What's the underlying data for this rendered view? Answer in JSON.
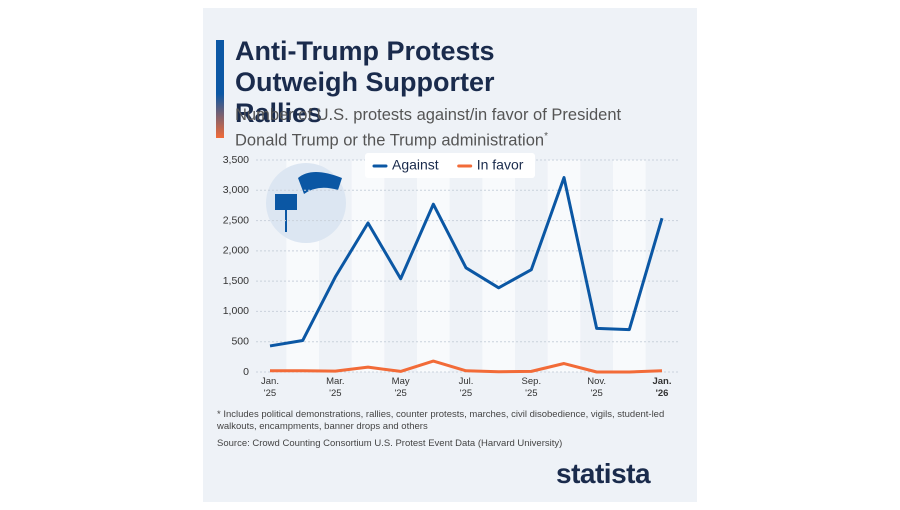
{
  "chart_data": {
    "type": "line",
    "title": "Anti-Trump Protests Outweigh Supporter Rallies",
    "subtitle": "Number of U.S. protests against/in favor of President Donald Trump or the Trump administration",
    "subtitle_mark": "*",
    "categories": [
      "Jan.\n'25",
      null,
      "Mar.\n'25",
      null,
      "May\n'25",
      null,
      "Jul.\n'25",
      null,
      "Sep.\n'25",
      null,
      "Nov.\n'25",
      null,
      "Jan.\n'26"
    ],
    "series": [
      {
        "name": "Against",
        "color": "#0b57a4",
        "values": [
          430,
          520,
          1570,
          2460,
          1540,
          2770,
          1720,
          1390,
          1690,
          3210,
          720,
          700,
          2540
        ]
      },
      {
        "name": "In favor",
        "color": "#f26b38",
        "values": [
          20,
          20,
          15,
          80,
          10,
          180,
          20,
          5,
          10,
          140,
          0,
          0,
          20
        ]
      }
    ],
    "ylim": [
      0,
      3500
    ],
    "yticks": [
      0,
      500,
      {
        "value": 1000,
        "label": "1,000"
      },
      {
        "value": 1500,
        "label": "1,500"
      },
      {
        "value": 2000,
        "label": "2,000"
      },
      {
        "value": 2500,
        "label": "2,500"
      },
      {
        "value": 3000,
        "label": "3,000"
      },
      {
        "value": 3500,
        "label": "3,500"
      }
    ],
    "grid": true,
    "legend": "top",
    "footnote": "* Includes political demonstrations, rallies, counter protests, marches, civil disobedience, vigils, student-led walkouts, encampments, banner drops and others",
    "source": "Source: Crowd Counting Consortium U.S. Protest Event Data (Harvard University)",
    "brand": "statista"
  }
}
